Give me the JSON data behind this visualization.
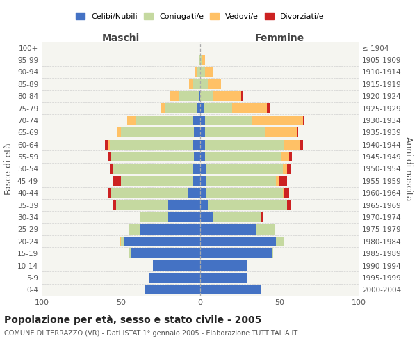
{
  "age_groups": [
    "0-4",
    "5-9",
    "10-14",
    "15-19",
    "20-24",
    "25-29",
    "30-34",
    "35-39",
    "40-44",
    "45-49",
    "50-54",
    "55-59",
    "60-64",
    "65-69",
    "70-74",
    "75-79",
    "80-84",
    "85-89",
    "90-94",
    "95-99",
    "100+"
  ],
  "birth_years": [
    "2000-2004",
    "1995-1999",
    "1990-1994",
    "1985-1989",
    "1980-1984",
    "1975-1979",
    "1970-1974",
    "1965-1969",
    "1960-1964",
    "1955-1959",
    "1950-1954",
    "1945-1949",
    "1940-1944",
    "1935-1939",
    "1930-1934",
    "1925-1929",
    "1920-1924",
    "1915-1919",
    "1910-1914",
    "1905-1909",
    "≤ 1904"
  ],
  "male_celibi": [
    35,
    32,
    30,
    44,
    48,
    38,
    20,
    20,
    8,
    5,
    5,
    4,
    5,
    4,
    5,
    2,
    1,
    0,
    0,
    0,
    0
  ],
  "male_coniugati": [
    0,
    0,
    0,
    1,
    2,
    7,
    18,
    33,
    48,
    45,
    50,
    52,
    52,
    46,
    36,
    20,
    12,
    5,
    2,
    1,
    0
  ],
  "male_vedovi": [
    0,
    0,
    0,
    0,
    1,
    0,
    0,
    0,
    0,
    0,
    0,
    0,
    1,
    2,
    5,
    3,
    6,
    2,
    1,
    0,
    0
  ],
  "male_divorziati": [
    0,
    0,
    0,
    0,
    0,
    0,
    0,
    2,
    2,
    5,
    2,
    2,
    2,
    0,
    0,
    0,
    0,
    0,
    0,
    0,
    0
  ],
  "female_nubili": [
    38,
    30,
    30,
    45,
    48,
    35,
    8,
    5,
    4,
    4,
    4,
    3,
    3,
    3,
    3,
    2,
    0,
    0,
    0,
    0,
    0
  ],
  "female_coniugate": [
    0,
    0,
    0,
    1,
    5,
    12,
    30,
    50,
    48,
    44,
    48,
    48,
    50,
    38,
    30,
    18,
    8,
    5,
    3,
    1,
    0
  ],
  "female_vedove": [
    0,
    0,
    0,
    0,
    0,
    0,
    0,
    0,
    1,
    2,
    3,
    5,
    10,
    20,
    32,
    22,
    18,
    8,
    5,
    2,
    0
  ],
  "female_divorziate": [
    0,
    0,
    0,
    0,
    0,
    0,
    2,
    2,
    3,
    5,
    2,
    2,
    2,
    1,
    1,
    2,
    1,
    0,
    0,
    0,
    0
  ],
  "colors_celibi": "#4472c4",
  "colors_coniugati": "#c5d9a0",
  "colors_vedovi": "#ffc166",
  "colors_divorziati": "#cc2222",
  "xlim": 100,
  "title": "Popolazione per età, sesso e stato civile - 2005",
  "subtitle": "COMUNE DI TERRAZZO (VR) - Dati ISTAT 1° gennaio 2005 - Elaborazione TUTTITALIA.IT",
  "ylabel_left": "Fasce di età",
  "ylabel_right": "Anni di nascita",
  "maschi_label": "Maschi",
  "femmine_label": "Femmine",
  "legend_labels": [
    "Celibi/Nubili",
    "Coniugati/e",
    "Vedovi/e",
    "Divorziati/e"
  ],
  "bg_color": "#ffffff",
  "plot_bg": "#f5f5f0",
  "grid_color": "#cccccc"
}
